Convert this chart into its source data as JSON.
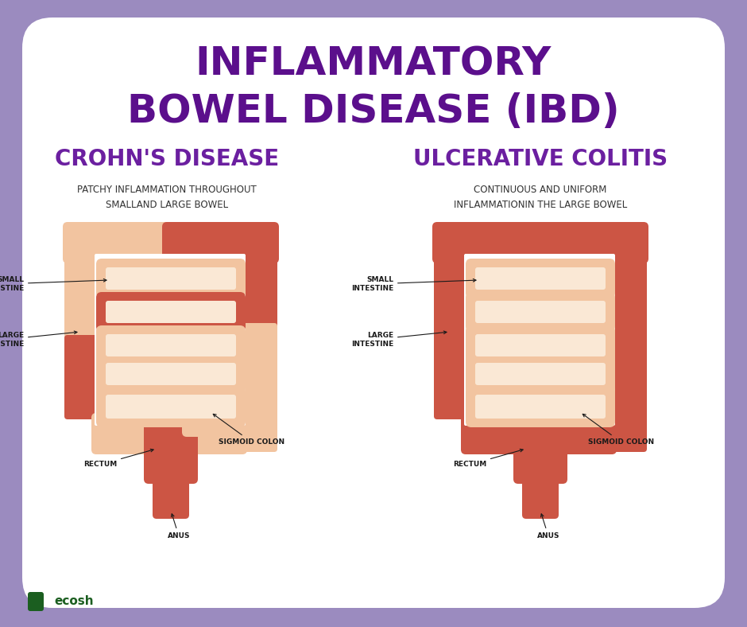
{
  "title_line1": "INFLAMMATORY",
  "title_line2": "BOWEL DISEASE (IBD)",
  "title_color": "#5B0F8C",
  "title_fontsize": 36,
  "left_heading": "CROHN'S DISEASE",
  "right_heading": "ULCERATIVE COLITIS",
  "heading_color": "#6B1FA0",
  "heading_fontsize": 20,
  "left_desc": "PATCHY INFLAMMATION THROUGHOUT\nSMALLAND LARGE BOWEL",
  "right_desc": "CONTINUOUS AND UNIFORM\nINFLAMMATIONIN THE LARGE BOWEL",
  "desc_fontsize": 8.5,
  "desc_color": "#333333",
  "bg_outer_color": "#9B8BBF",
  "bg_card_color": "#ffffff",
  "annotation_color": "#1a1a1a",
  "annotation_fontsize": 6.5,
  "bowel_normal_color": "#F2C4A0",
  "bowel_inflamed_color": "#CC5544",
  "inner_color": "#FAE8D5",
  "logo_text": "ecosh",
  "logo_color": "#1B5E20",
  "logo_drop_color": "#1B5E20"
}
